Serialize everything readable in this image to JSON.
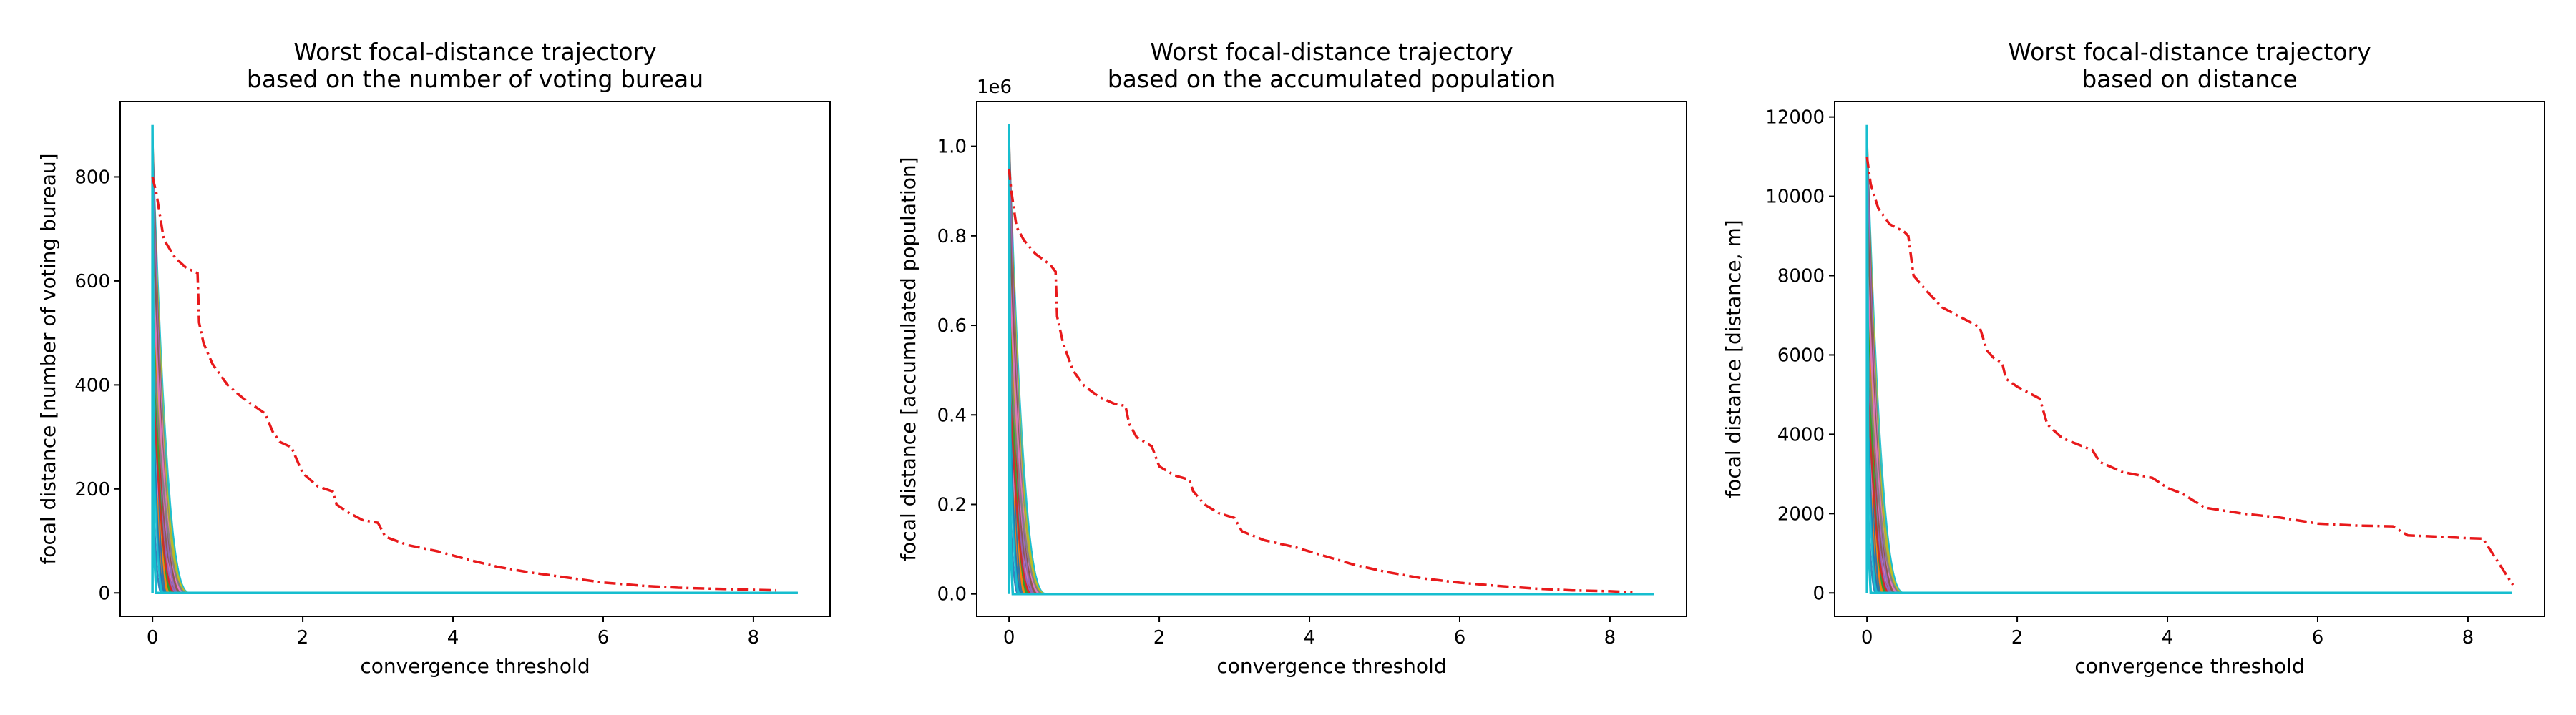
{
  "chart_data": [
    {
      "type": "line",
      "title": [
        "Worst focal-distance trajectory",
        "based on the number of voting bureau"
      ],
      "xlabel": "convergence threshold",
      "ylabel": "focal distance [number of voting bureau]",
      "xlim": [
        -0.43,
        9.02
      ],
      "ylim": [
        -45,
        945
      ],
      "xticks": [
        0,
        2,
        4,
        6,
        8
      ],
      "xtick_labels": [
        "0",
        "2",
        "4",
        "6",
        "8"
      ],
      "yticks": [
        0,
        200,
        400,
        600,
        800
      ],
      "ytick_labels": [
        "0",
        "200",
        "400",
        "600",
        "800"
      ],
      "offset_label": "",
      "peak": 900,
      "bundle_end": 0.5,
      "series": [
        {
          "style": "worst",
          "color": "#e8191b",
          "x": [
            0,
            0.05,
            0.15,
            0.3,
            0.45,
            0.6,
            0.62,
            0.68,
            0.8,
            1.0,
            1.2,
            1.4,
            1.5,
            1.6,
            1.7,
            1.85,
            2.0,
            2.2,
            2.4,
            2.45,
            2.6,
            2.8,
            3.0,
            3.1,
            3.4,
            3.8,
            4.2,
            4.6,
            5.0,
            5.5,
            6.0,
            6.5,
            7.0,
            7.5,
            8.0,
            8.3
          ],
          "y": [
            800,
            770,
            680,
            645,
            625,
            615,
            520,
            480,
            440,
            400,
            375,
            355,
            345,
            310,
            290,
            280,
            230,
            205,
            195,
            170,
            155,
            140,
            135,
            108,
            92,
            80,
            64,
            50,
            40,
            30,
            20,
            14,
            10,
            8,
            6,
            5
          ]
        }
      ]
    },
    {
      "type": "line",
      "title": [
        "Worst focal-distance trajectory",
        "based on the accumulated population"
      ],
      "xlabel": "convergence threshold",
      "ylabel": "focal distance [accumulated population]",
      "xlim": [
        -0.43,
        9.02
      ],
      "ylim": [
        -0.05,
        1.1
      ],
      "xticks": [
        0,
        2,
        4,
        6,
        8
      ],
      "xtick_labels": [
        "0",
        "2",
        "4",
        "6",
        "8"
      ],
      "yticks": [
        0,
        0.2,
        0.4,
        0.6,
        0.8,
        1.0
      ],
      "ytick_labels": [
        "0.0",
        "0.2",
        "0.4",
        "0.6",
        "0.8",
        "1.0"
      ],
      "offset_label": "1e6",
      "peak": 1.05,
      "bundle_end": 0.5,
      "series": [
        {
          "style": "worst",
          "color": "#e8191b",
          "x": [
            0,
            0.03,
            0.1,
            0.2,
            0.35,
            0.55,
            0.62,
            0.64,
            0.72,
            0.85,
            1.0,
            1.2,
            1.4,
            1.55,
            1.6,
            1.7,
            1.9,
            2.0,
            2.2,
            2.4,
            2.45,
            2.6,
            2.8,
            3.0,
            3.1,
            3.4,
            3.8,
            4.2,
            4.6,
            5.0,
            5.5,
            6.0,
            6.5,
            7.0,
            7.5,
            8.0,
            8.3
          ],
          "y": [
            0.95,
            0.9,
            0.82,
            0.79,
            0.76,
            0.735,
            0.72,
            0.62,
            0.56,
            0.5,
            0.465,
            0.44,
            0.425,
            0.42,
            0.38,
            0.35,
            0.33,
            0.285,
            0.265,
            0.255,
            0.23,
            0.2,
            0.18,
            0.17,
            0.14,
            0.12,
            0.105,
            0.085,
            0.065,
            0.05,
            0.035,
            0.025,
            0.018,
            0.012,
            0.008,
            0.006,
            0.004
          ]
        }
      ]
    },
    {
      "type": "line",
      "title": [
        "Worst focal-distance trajectory",
        "based on distance"
      ],
      "xlabel": "convergence threshold",
      "ylabel": "focal distance [distance, m]",
      "xlim": [
        -0.43,
        9.02
      ],
      "ylim": [
        -590,
        12390
      ],
      "xticks": [
        0,
        2,
        4,
        6,
        8
      ],
      "xtick_labels": [
        "0",
        "2",
        "4",
        "6",
        "8"
      ],
      "yticks": [
        0,
        2000,
        4000,
        6000,
        8000,
        10000,
        12000
      ],
      "ytick_labels": [
        "0",
        "2000",
        "4000",
        "6000",
        "8000",
        "10000",
        "12000"
      ],
      "offset_label": "",
      "peak": 11800,
      "bundle_end": 0.5,
      "series": [
        {
          "style": "worst",
          "color": "#e8191b",
          "x": [
            0,
            0.05,
            0.15,
            0.3,
            0.5,
            0.55,
            0.62,
            0.8,
            1.0,
            1.2,
            1.4,
            1.5,
            1.6,
            1.7,
            1.8,
            1.85,
            2.0,
            2.2,
            2.3,
            2.4,
            2.6,
            2.8,
            3.0,
            3.1,
            3.4,
            3.8,
            4.0,
            4.2,
            4.5,
            5.0,
            5.5,
            6.0,
            6.5,
            7.0,
            7.2,
            7.6,
            8.0,
            8.2,
            8.6
          ],
          "y": [
            11000,
            10300,
            9700,
            9300,
            9100,
            9000,
            8000,
            7600,
            7200,
            7000,
            6800,
            6700,
            6100,
            5900,
            5800,
            5400,
            5200,
            5000,
            4900,
            4250,
            3900,
            3750,
            3600,
            3300,
            3050,
            2900,
            2650,
            2500,
            2150,
            2000,
            1900,
            1750,
            1700,
            1680,
            1450,
            1420,
            1380,
            1370,
            200
          ]
        }
      ]
    }
  ]
}
